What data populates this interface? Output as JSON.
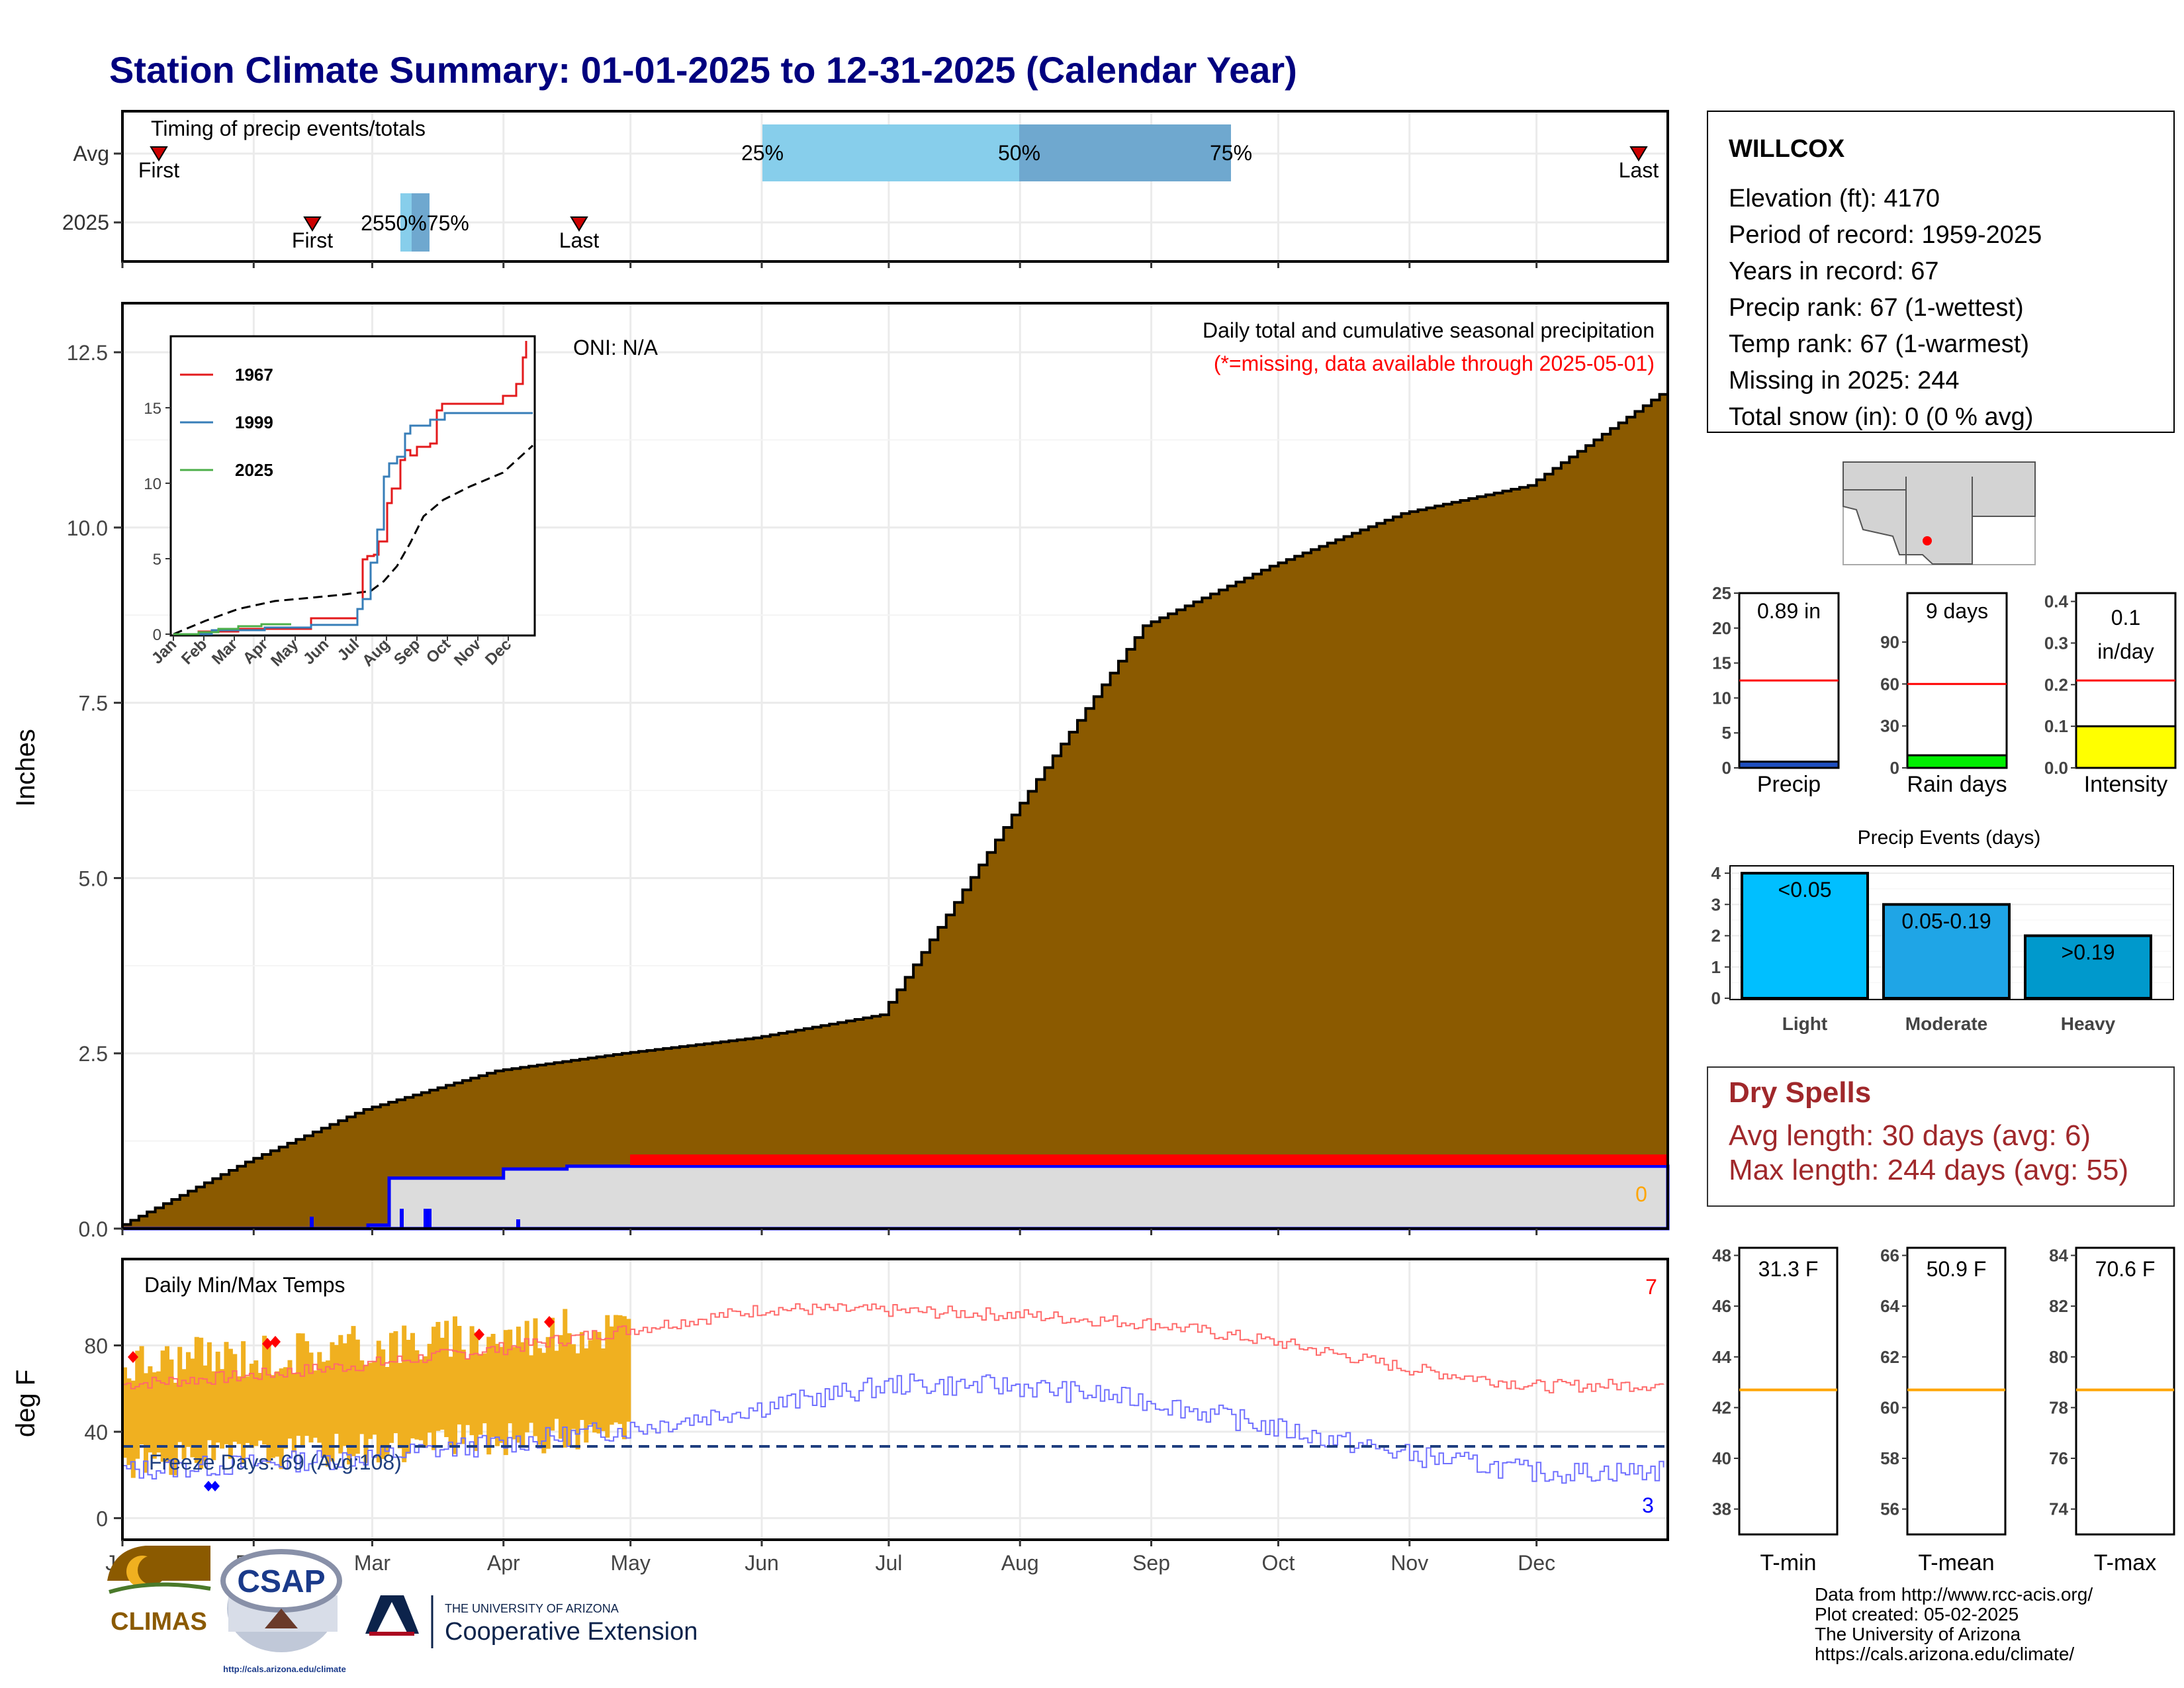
{
  "title": "Station Climate Summary: 01-01-2025 to 12-31-2025 (Calendar Year)",
  "months": [
    "Jan",
    "Feb",
    "Mar",
    "Apr",
    "May",
    "Jun",
    "Jul",
    "Aug",
    "Sep",
    "Oct",
    "Nov",
    "Dec"
  ],
  "colors": {
    "title": "#00007f",
    "precip_fill": "#8b5a00",
    "current_precip": "#0000ff",
    "missing": "#ff0000",
    "temp_bar": "#f0b020",
    "avg_max": "#ff6a6a",
    "avg_min": "#7070ff",
    "freeze_line": "#1f3f7f",
    "dry_spells": "#a0282b"
  },
  "timing_panel": {
    "label": "Timing of precip events/totals",
    "rows": [
      "Avg",
      "2025"
    ],
    "avg": {
      "first_label": "First",
      "last_label": "Last",
      "q25": "25%",
      "q50": "50%",
      "q75": "75%"
    },
    "current": {
      "first_label": "First",
      "last_label": "Last",
      "overlap_text": "2550%75%"
    }
  },
  "main_panel": {
    "ylabel": "Inches",
    "yticks": [
      "0.0",
      "2.5",
      "5.0",
      "7.5",
      "10.0",
      "12.5"
    ],
    "oni": "ONI: N/A",
    "note1": "Daily total and cumulative seasonal precipitation",
    "note2": "(*=missing, data available through 2025-05-01)",
    "missing_count_label": "0",
    "inset": {
      "yticks": [
        "0",
        "5",
        "10",
        "15"
      ],
      "months": [
        "Jan",
        "Feb",
        "Mar",
        "Apr",
        "May",
        "Jun",
        "Jul",
        "Aug",
        "Sep",
        "Oct",
        "Nov",
        "Dec"
      ],
      "legend": [
        "1967",
        "1999",
        "2025"
      ]
    }
  },
  "temp_panel": {
    "ylabel": "deg F",
    "label": "Daily Min/Max Temps",
    "yticks": [
      "0",
      "40",
      "80"
    ],
    "freeze_text": "Freeze Days: 69 (Avg:108)",
    "count_high": "7",
    "count_low": "3"
  },
  "station": {
    "name": "WILLCOX",
    "lines": [
      "Elevation (ft): 4170",
      "Period of record: 1959-2025",
      "Years in record: 67",
      "Precip rank: 67 (1-wettest)",
      "Temp rank: 67 (1-warmest)",
      "Missing in 2025: 244",
      "Total snow (in): 0 (0 % avg)"
    ]
  },
  "small_bars": [
    {
      "title": "0.89 in",
      "label": "Precip",
      "yticks": [
        "0",
        "5",
        "10",
        "15",
        "20",
        "25"
      ],
      "ymax": 25,
      "value": 0.89,
      "avg": 12.5,
      "color": "#1f4fbf"
    },
    {
      "title": "9 days",
      "label": "Rain days",
      "yticks": [
        "0",
        "30",
        "60",
        "90"
      ],
      "ymax": 125,
      "value": 9,
      "avg": 60,
      "color": "#00ee00"
    },
    {
      "title": "0.1",
      "title2": "in/day",
      "label": "Intensity",
      "yticks": [
        "0.0",
        "0.1",
        "0.2",
        "0.3",
        "0.4"
      ],
      "ymax": 0.42,
      "value": 0.1,
      "avg": 0.21,
      "color": "#ffff00"
    }
  ],
  "events": {
    "title": "Precip Events (days)",
    "yticks": [
      "0",
      "1",
      "2",
      "3",
      "4"
    ],
    "bars": [
      {
        "label": "Light",
        "text": "<0.05",
        "value": 4,
        "color": "#00bfff"
      },
      {
        "label": "Moderate",
        "text": "0.05-0.19",
        "value": 3,
        "color": "#1fa5e6"
      },
      {
        "label": "Heavy",
        "text": ">0.19",
        "value": 2,
        "color": "#0099cc"
      }
    ]
  },
  "dry_spells": {
    "title": "Dry Spells",
    "line1": "Avg length: 30 days (avg: 6)",
    "line2": "Max length: 244 days (avg: 55)"
  },
  "temp_bars": [
    {
      "title": "31.3 F",
      "label": "T-min",
      "yticks": [
        "38",
        "40",
        "42",
        "44",
        "46",
        "48"
      ],
      "ymin": 37,
      "ymax": 48.3,
      "avg": 42.7
    },
    {
      "title": "50.9 F",
      "label": "T-mean",
      "yticks": [
        "56",
        "58",
        "60",
        "62",
        "64",
        "66"
      ],
      "ymin": 55,
      "ymax": 66.3,
      "avg": 60.7
    },
    {
      "title": "70.6 F",
      "label": "T-max",
      "yticks": [
        "74",
        "76",
        "78",
        "80",
        "82",
        "84"
      ],
      "ymin": 73,
      "ymax": 84.3,
      "avg": 78.7
    }
  ],
  "footer": {
    "lines": [
      "Data from http://www.rcc-acis.org/",
      "Plot created: 05-02-2025",
      "The University of Arizona",
      "https://cals.arizona.edu/climate/"
    ],
    "climas": "CLIMAS",
    "csap": "CSAP",
    "csap_url": "http://cals.arizona.edu/climate",
    "ua_small": "THE UNIVERSITY OF ARIZONA",
    "ua_big": "Cooperative Extension"
  },
  "chart_data": [
    {
      "type": "area",
      "title": "Daily total and cumulative seasonal precipitation",
      "ylabel": "Inches",
      "ylim": [
        0,
        13
      ],
      "series": [
        {
          "name": "Average cumulative",
          "x": [
            "01-01",
            "02-01",
            "03-01",
            "04-01",
            "05-01",
            "06-01",
            "07-01",
            "08-01",
            "09-01",
            "10-01",
            "11-01",
            "12-01",
            "12-31"
          ],
          "values": [
            0,
            0.95,
            1.7,
            2.25,
            2.5,
            2.72,
            3.05,
            5.9,
            8.6,
            9.45,
            10.2,
            10.6,
            11.9
          ]
        },
        {
          "name": "2025 cumulative",
          "x": [
            "01-01",
            "02-01",
            "03-01",
            "04-01",
            "05-01"
          ],
          "values": [
            0,
            0.0,
            0.72,
            0.85,
            0.89
          ]
        }
      ]
    },
    {
      "type": "line",
      "title": "Daily Min/Max Temps",
      "ylabel": "deg F",
      "series": [
        {
          "name": "Average max",
          "x": [
            "Jan",
            "Feb",
            "Mar",
            "Apr",
            "May",
            "Jun",
            "Jul",
            "Aug",
            "Sep",
            "Oct",
            "Nov",
            "Dec"
          ],
          "values": [
            62,
            66,
            72,
            79,
            88,
            97,
            96,
            94,
            90,
            81,
            69,
            61
          ]
        },
        {
          "name": "Average min",
          "x": [
            "Jan",
            "Feb",
            "Mar",
            "Apr",
            "May",
            "Jun",
            "Jul",
            "Aug",
            "Sep",
            "Oct",
            "Nov",
            "Dec"
          ],
          "values": [
            22,
            25,
            29,
            35,
            42,
            52,
            62,
            61,
            54,
            41,
            29,
            21
          ]
        }
      ]
    }
  ]
}
